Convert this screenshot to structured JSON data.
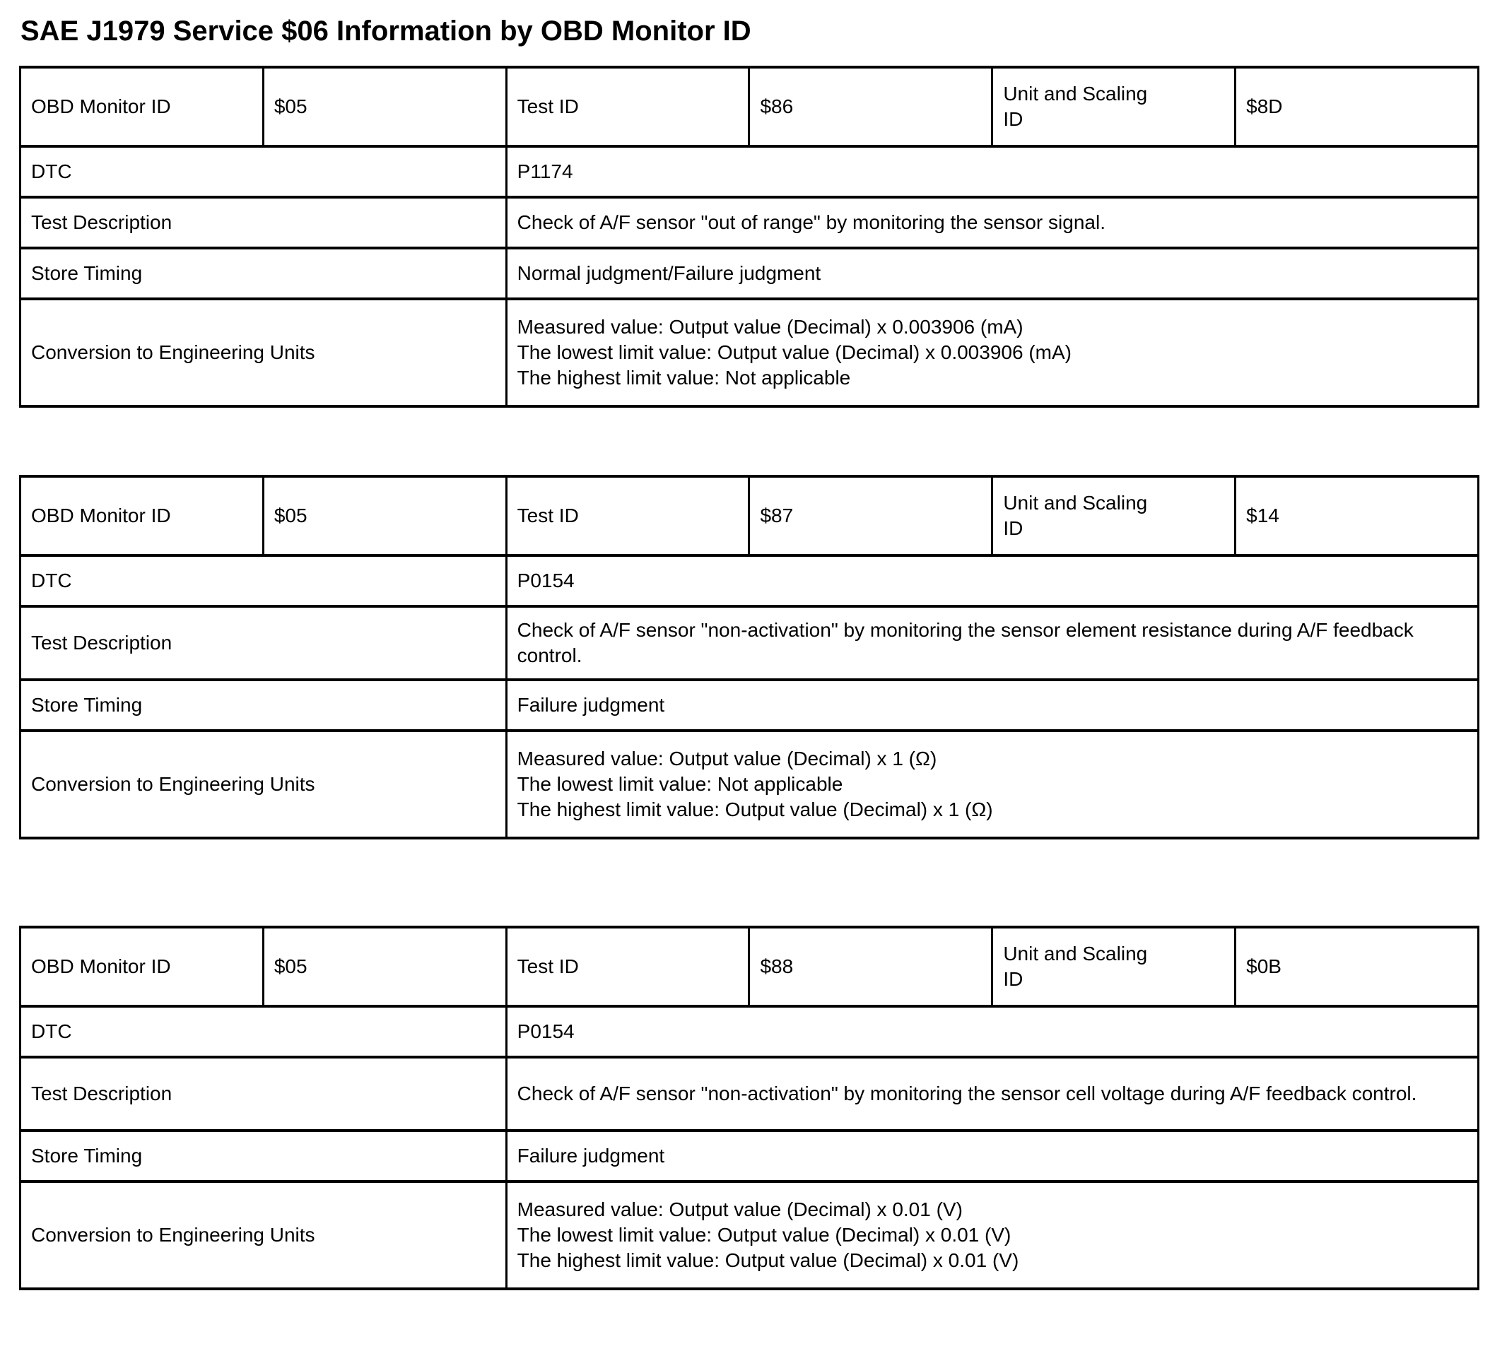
{
  "page": {
    "title": "SAE J1979 Service $06 Information by OBD Monitor ID"
  },
  "labels": {
    "obd_monitor_id": "OBD Monitor ID",
    "test_id": "Test ID",
    "unit_scaling_id": "Unit and Scaling ID",
    "dtc": "DTC",
    "test_description": "Test Description",
    "store_timing": "Store Timing",
    "conversion": "Conversion to Engineering Units"
  },
  "tables": [
    {
      "obd_monitor_id": "$05",
      "test_id": "$86",
      "unit_scaling_id": "$8D",
      "dtc": "P1174",
      "test_description": "Check of A/F sensor \"out of range\" by monitoring the sensor signal.",
      "store_timing": "Normal judgment/Failure judgment",
      "conversion_lines": [
        "Measured value: Output value (Decimal) x 0.003906 (mA)",
        "The lowest limit value: Output value (Decimal) x 0.003906 (mA)",
        "The highest limit value: Not applicable"
      ]
    },
    {
      "obd_monitor_id": "$05",
      "test_id": "$87",
      "unit_scaling_id": "$14",
      "dtc": "P0154",
      "test_description": "Check of A/F sensor \"non-activation\" by monitoring the sensor element resistance during A/F feedback control.",
      "store_timing": "Failure judgment",
      "conversion_lines": [
        "Measured value: Output value (Decimal) x 1 (Ω)",
        "The lowest limit value: Not applicable",
        "The highest limit value: Output value (Decimal) x 1 (Ω)"
      ]
    },
    {
      "obd_monitor_id": "$05",
      "test_id": "$88",
      "unit_scaling_id": "$0B",
      "dtc": "P0154",
      "test_description": "Check of A/F sensor \"non-activation\" by monitoring the sensor cell voltage during A/F feedback control.",
      "store_timing": "Failure judgment",
      "conversion_lines": [
        "Measured value: Output value (Decimal) x 0.01 (V)",
        "The lowest limit value: Output value (Decimal) x 0.01 (V)",
        "The highest limit value: Output value (Decimal) x 0.01 (V)"
      ]
    }
  ]
}
